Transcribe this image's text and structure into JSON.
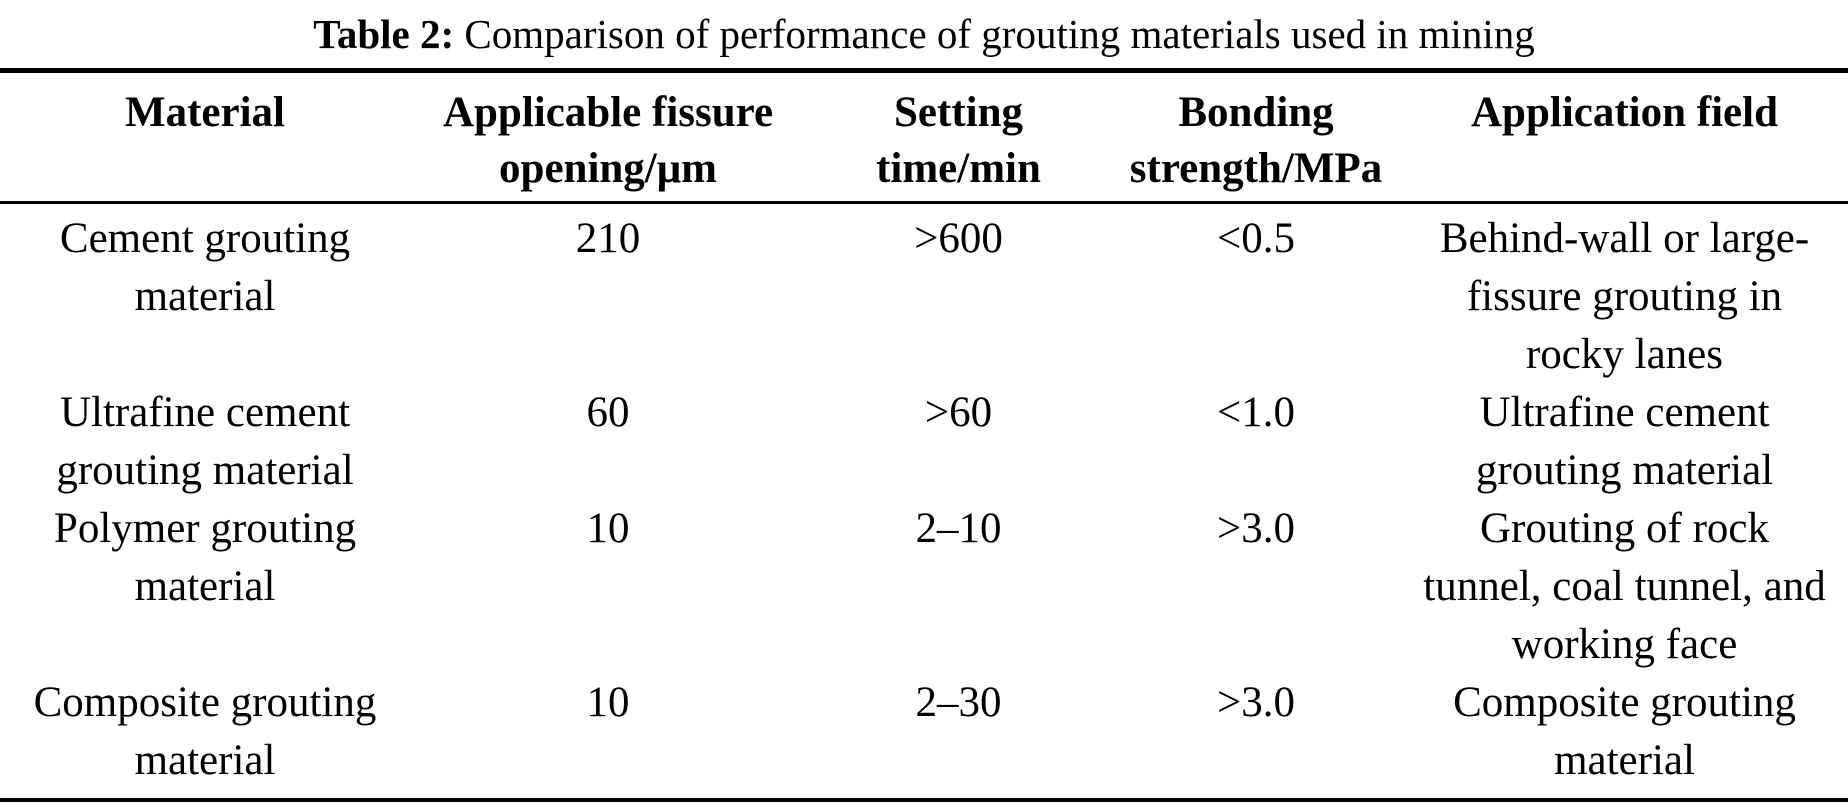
{
  "caption": {
    "label": "Table 2:",
    "text": "Comparison of performance of grouting materials used in mining"
  },
  "table": {
    "columns": [
      "Material",
      "Applicable fissure opening/μm",
      "Setting time/min",
      "Bonding strength/MPa",
      "Application field"
    ],
    "rows": [
      [
        "Cement grouting material",
        "210",
        ">600",
        "<0.5",
        "Behind-wall or large-fissure grouting in rocky lanes"
      ],
      [
        "Ultrafine cement grouting material",
        "60",
        ">60",
        "<1.0",
        "Ultrafine cement grouting material"
      ],
      [
        "Polymer grouting material",
        "10",
        "2–10",
        ">3.0",
        "Grouting of rock tunnel, coal tunnel, and working face"
      ],
      [
        "Composite grouting material",
        "10",
        "2–30",
        ">3.0",
        "Composite grouting material"
      ]
    ]
  },
  "colors": {
    "background": "#ffffff",
    "text": "#000000",
    "rule": "#000000"
  }
}
